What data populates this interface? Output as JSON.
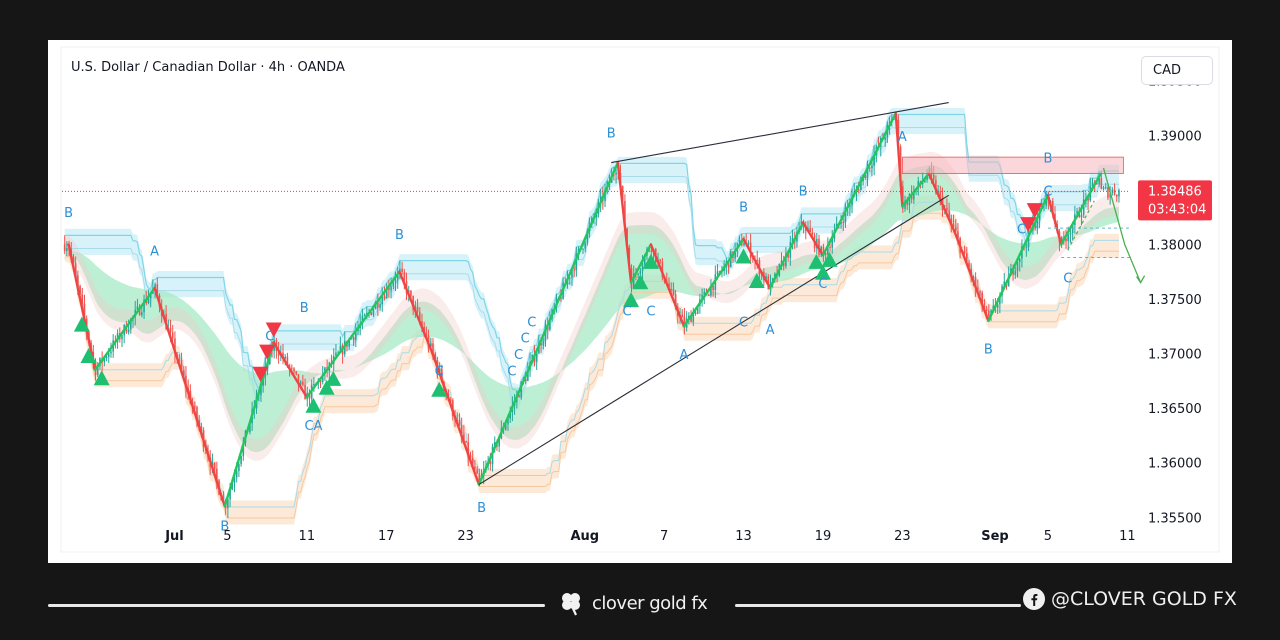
{
  "header": {
    "title": "U.S. Dollar / Canadian Dollar · 4h · OANDA",
    "currency_label": "CAD"
  },
  "price_tag": {
    "price": "1.38486",
    "countdown": "03:43:04",
    "color": "#f23645"
  },
  "colors": {
    "up": "#26a69a",
    "down": "#ef5350",
    "zigzag_up": "#22c55e",
    "zigzag_down": "#ef4444",
    "cyan_band": "#7fd6e8",
    "accent_blue": "#2d8fd5",
    "resistance_zone": "#f7b7bd"
  },
  "footer": {
    "brand": "clover gold fx",
    "social": "@CLOVER GOLD FX",
    "brand_icon": "clover-icon",
    "social_icon": "facebook-icon"
  },
  "chart_data": {
    "type": "candlestick",
    "symbol": "U.S. Dollar / Canadian Dollar",
    "timeframe": "4h",
    "source": "OANDA",
    "ylim": [
      1.352,
      1.398
    ],
    "y_ticks": [
      "1.39500",
      "1.39000",
      "1.38500",
      "1.38000",
      "1.37500",
      "1.37000",
      "1.36500",
      "1.36000",
      "1.35500"
    ],
    "x_ticks": [
      {
        "label": "Jul",
        "day": 0.0
      },
      {
        "label": "5",
        "day": 4.0
      },
      {
        "label": "11",
        "day": 10.0
      },
      {
        "label": "17",
        "day": 16.0
      },
      {
        "label": "23",
        "day": 22.0
      },
      {
        "label": "Aug",
        "day": 31.0
      },
      {
        "label": "7",
        "day": 37.0
      },
      {
        "label": "13",
        "day": 43.0
      },
      {
        "label": "19",
        "day": 49.0
      },
      {
        "label": "23",
        "day": 55.0
      },
      {
        "label": "Sep",
        "day": 62.0
      },
      {
        "label": "5",
        "day": 66.0
      },
      {
        "label": "11",
        "day": 72.0
      }
    ],
    "x_range": [
      -8.5,
      72.2
    ],
    "last_price": 1.38486,
    "zigzag": [
      {
        "day": -8.0,
        "price": 1.38
      },
      {
        "day": -6.0,
        "price": 1.3685
      },
      {
        "day": -1.5,
        "price": 1.376
      },
      {
        "day": 3.8,
        "price": 1.356
      },
      {
        "day": 7.5,
        "price": 1.371
      },
      {
        "day": 10.0,
        "price": 1.366
      },
      {
        "day": 17.0,
        "price": 1.3775
      },
      {
        "day": 19.5,
        "price": 1.37
      },
      {
        "day": 23.0,
        "price": 1.358
      },
      {
        "day": 33.5,
        "price": 1.3875
      },
      {
        "day": 34.5,
        "price": 1.3765
      },
      {
        "day": 36.0,
        "price": 1.38
      },
      {
        "day": 38.5,
        "price": 1.3725
      },
      {
        "day": 43.0,
        "price": 1.3805
      },
      {
        "day": 45.0,
        "price": 1.376
      },
      {
        "day": 47.5,
        "price": 1.382
      },
      {
        "day": 49.0,
        "price": 1.379
      },
      {
        "day": 54.5,
        "price": 1.392
      },
      {
        "day": 55.0,
        "price": 1.3835
      },
      {
        "day": 57.0,
        "price": 1.3865
      },
      {
        "day": 59.0,
        "price": 1.381
      },
      {
        "day": 61.5,
        "price": 1.373
      },
      {
        "day": 66.0,
        "price": 1.3845
      },
      {
        "day": 67.0,
        "price": 1.38
      },
      {
        "day": 70.0,
        "price": 1.3865
      }
    ],
    "trendlines": [
      {
        "from": {
          "day": 33.0,
          "price": 1.3875
        },
        "to": {
          "day": 58.5,
          "price": 1.393
        }
      },
      {
        "from": {
          "day": 23.0,
          "price": 1.358
        },
        "to": {
          "day": 58.5,
          "price": 1.3845
        }
      }
    ],
    "resistance_zone": {
      "from_day": 55.0,
      "to_day": 71.7,
      "low": 1.3865,
      "high": 1.388
    },
    "wave_labels": [
      {
        "text": "B",
        "day": -8.0,
        "price": 1.3825
      },
      {
        "text": "A",
        "day": -1.5,
        "price": 1.379
      },
      {
        "text": "B",
        "day": 3.8,
        "price": 1.3538
      },
      {
        "text": "B",
        "day": 9.8,
        "price": 1.3738
      },
      {
        "text": "C",
        "day": 7.2,
        "price": 1.3712
      },
      {
        "text": "B",
        "day": 17.0,
        "price": 1.3805
      },
      {
        "text": "C",
        "day": 20.0,
        "price": 1.368
      },
      {
        "text": "CA",
        "day": 10.5,
        "price": 1.363
      },
      {
        "text": "B",
        "day": 23.2,
        "price": 1.3555
      },
      {
        "text": "C",
        "day": 25.5,
        "price": 1.368
      },
      {
        "text": "C",
        "day": 26.0,
        "price": 1.3695
      },
      {
        "text": "C",
        "day": 26.5,
        "price": 1.371
      },
      {
        "text": "C",
        "day": 27.0,
        "price": 1.3725
      },
      {
        "text": "B",
        "day": 33.0,
        "price": 1.3898
      },
      {
        "text": "C",
        "day": 34.2,
        "price": 1.3735
      },
      {
        "text": "C",
        "day": 36.0,
        "price": 1.3735
      },
      {
        "text": "A",
        "day": 38.5,
        "price": 1.3695
      },
      {
        "text": "B",
        "day": 43.0,
        "price": 1.383
      },
      {
        "text": "C",
        "day": 43.0,
        "price": 1.3725
      },
      {
        "text": "A",
        "day": 45.0,
        "price": 1.3718
      },
      {
        "text": "B",
        "day": 47.5,
        "price": 1.3845
      },
      {
        "text": "C",
        "day": 49.0,
        "price": 1.376
      },
      {
        "text": "A",
        "day": 55.0,
        "price": 1.3895
      },
      {
        "text": "B",
        "day": 61.5,
        "price": 1.37
      },
      {
        "text": "C",
        "day": 64.0,
        "price": 1.381
      },
      {
        "text": "C",
        "day": 66.0,
        "price": 1.3845
      },
      {
        "text": "B",
        "day": 66.0,
        "price": 1.3875
      },
      {
        "text": "C",
        "day": 67.5,
        "price": 1.3765
      }
    ],
    "buy_signals": [
      -7.0,
      -6.5,
      -5.5,
      10.5,
      11.5,
      12.0,
      20.0,
      34.5,
      35.2,
      36.0,
      43.0,
      44.0,
      48.5,
      49.0,
      49.5
    ],
    "sell_signals": [
      6.5,
      7.0,
      7.5,
      64.5,
      65.0
    ]
  }
}
